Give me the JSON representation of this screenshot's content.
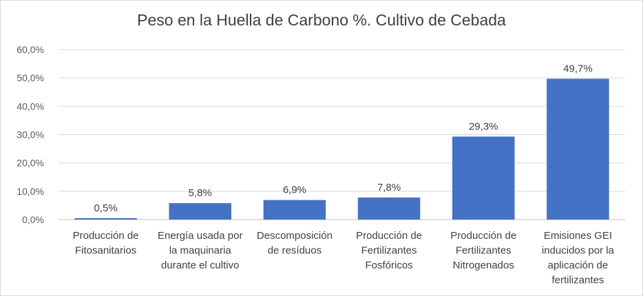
{
  "chart_data": {
    "type": "bar",
    "title": "Peso en la Huella de Carbono %. Cultivo de Cebada",
    "categories": [
      [
        "Producción de",
        "Fitosanitarios"
      ],
      [
        "Energía usada por",
        "la maquinaria",
        "durante el cultivo"
      ],
      [
        "Descomposición",
        "de resíduos"
      ],
      [
        "Producción de",
        "Fertilizantes",
        "Fosfóricos"
      ],
      [
        "Producción de",
        "Fertilizantes",
        "Nitrogenados"
      ],
      [
        "Emisiones GEI",
        "inducidos por la",
        "aplicación de",
        "fertilizantes"
      ]
    ],
    "values": [
      0.5,
      5.8,
      6.9,
      7.8,
      29.3,
      49.7
    ],
    "value_labels": [
      "0,5%",
      "5,8%",
      "6,9%",
      "7,8%",
      "29,3%",
      "49,7%"
    ],
    "y_ticks": [
      "0,0%",
      "10,0%",
      "20,0%",
      "30,0%",
      "40,0%",
      "50,0%",
      "60,0%"
    ],
    "ylim": [
      0,
      60
    ],
    "grid": true,
    "legend": "none",
    "bar_color": "#4472c4"
  }
}
